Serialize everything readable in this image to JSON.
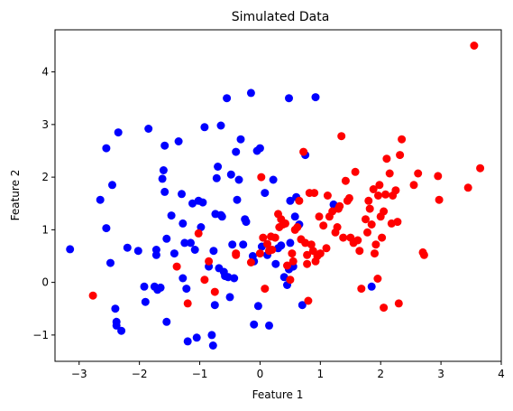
{
  "chart_data": {
    "type": "scatter",
    "title": "Simulated Data",
    "xlabel": "Feature 1",
    "ylabel": "Feature 2",
    "xlim": [
      -3.4,
      4.0
    ],
    "ylim": [
      -1.5,
      4.8
    ],
    "xticks": [
      -3,
      -2,
      -1,
      0,
      1,
      2,
      3,
      4
    ],
    "yticks": [
      -1,
      0,
      1,
      2,
      3,
      4
    ],
    "xtick_labels": [
      "−3",
      "−2",
      "−1",
      "0",
      "1",
      "2",
      "3",
      "4"
    ],
    "ytick_labels": [
      "−1",
      "0",
      "1",
      "2",
      "3",
      "4"
    ],
    "grid": false,
    "series": [
      {
        "color": "#0000ff",
        "points": [
          [
            -3.15,
            0.63
          ],
          [
            -2.65,
            1.57
          ],
          [
            -2.55,
            2.55
          ],
          [
            -2.55,
            1.03
          ],
          [
            -2.48,
            0.37
          ],
          [
            -2.45,
            1.85
          ],
          [
            -2.4,
            -0.5
          ],
          [
            -2.38,
            -0.75
          ],
          [
            -2.38,
            -0.82
          ],
          [
            -2.35,
            2.85
          ],
          [
            -2.3,
            -0.92
          ],
          [
            -2.2,
            0.66
          ],
          [
            -2.02,
            0.6
          ],
          [
            -1.92,
            -0.08
          ],
          [
            -1.9,
            -0.37
          ],
          [
            -1.85,
            2.92
          ],
          [
            -1.75,
            -0.08
          ],
          [
            -1.72,
            0.62
          ],
          [
            -1.72,
            0.52
          ],
          [
            -1.7,
            -0.14
          ],
          [
            -1.65,
            -0.1
          ],
          [
            -1.62,
            1.97
          ],
          [
            -1.6,
            2.13
          ],
          [
            -1.58,
            1.72
          ],
          [
            -1.58,
            2.6
          ],
          [
            -1.55,
            -0.75
          ],
          [
            -1.55,
            0.83
          ],
          [
            -1.47,
            1.27
          ],
          [
            -1.42,
            0.55
          ],
          [
            -1.35,
            2.68
          ],
          [
            -1.3,
            1.68
          ],
          [
            -1.28,
            1.12
          ],
          [
            -1.28,
            0.08
          ],
          [
            -1.25,
            0.75
          ],
          [
            -1.22,
            -0.12
          ],
          [
            -1.2,
            -1.12
          ],
          [
            -1.15,
            0.75
          ],
          [
            -1.12,
            1.5
          ],
          [
            -1.08,
            0.62
          ],
          [
            -1.05,
            -1.05
          ],
          [
            -1.02,
            1.55
          ],
          [
            -0.98,
            1.05
          ],
          [
            -0.95,
            1.52
          ],
          [
            -0.92,
            2.95
          ],
          [
            -0.85,
            0.3
          ],
          [
            -0.8,
            -1.0
          ],
          [
            -0.78,
            -1.2
          ],
          [
            -0.77,
            0.6
          ],
          [
            -0.75,
            -0.43
          ],
          [
            -0.74,
            1.3
          ],
          [
            -0.72,
            1.98
          ],
          [
            -0.7,
            2.2
          ],
          [
            -0.68,
            0.27
          ],
          [
            -0.65,
            1.28
          ],
          [
            -0.65,
            2.98
          ],
          [
            -0.63,
            1.25
          ],
          [
            -0.6,
            0.2
          ],
          [
            -0.58,
            0.12
          ],
          [
            -0.55,
            3.5
          ],
          [
            -0.53,
            0.1
          ],
          [
            -0.5,
            -0.28
          ],
          [
            -0.48,
            2.05
          ],
          [
            -0.46,
            0.72
          ],
          [
            -0.43,
            0.08
          ],
          [
            -0.4,
            2.48
          ],
          [
            -0.38,
            1.57
          ],
          [
            -0.35,
            1.95
          ],
          [
            -0.32,
            2.72
          ],
          [
            -0.28,
            0.72
          ],
          [
            -0.25,
            1.2
          ],
          [
            -0.23,
            1.15
          ],
          [
            -0.15,
            3.6
          ],
          [
            -0.12,
            0.5
          ],
          [
            -0.1,
            -0.8
          ],
          [
            -0.1,
            0.4
          ],
          [
            -0.05,
            2.5
          ],
          [
            -0.03,
            -0.45
          ],
          [
            0.0,
            2.55
          ],
          [
            0.03,
            0.68
          ],
          [
            0.08,
            1.7
          ],
          [
            0.12,
            0.52
          ],
          [
            0.15,
            -0.82
          ],
          [
            0.22,
            1.95
          ],
          [
            0.26,
            0.35
          ],
          [
            0.3,
            0.65
          ],
          [
            0.35,
            0.7
          ],
          [
            0.4,
            0.1
          ],
          [
            0.45,
            -0.05
          ],
          [
            0.48,
            0.25
          ],
          [
            0.48,
            3.5
          ],
          [
            0.5,
            0.75
          ],
          [
            0.5,
            1.55
          ],
          [
            0.55,
            0.3
          ],
          [
            0.58,
            1.25
          ],
          [
            0.6,
            1.62
          ],
          [
            0.65,
            1.1
          ],
          [
            0.7,
            -0.43
          ],
          [
            0.75,
            2.42
          ],
          [
            0.92,
            3.52
          ],
          [
            1.22,
            1.48
          ],
          [
            1.85,
            -0.08
          ]
        ]
      },
      {
        "color": "#ff0000",
        "points": [
          [
            -2.77,
            -0.25
          ],
          [
            -1.38,
            0.3
          ],
          [
            -1.2,
            -0.4
          ],
          [
            -1.02,
            0.93
          ],
          [
            -0.92,
            0.05
          ],
          [
            -0.85,
            0.4
          ],
          [
            -0.75,
            -0.18
          ],
          [
            -0.4,
            0.55
          ],
          [
            -0.15,
            0.38
          ],
          [
            0.0,
            0.55
          ],
          [
            0.02,
            2.0
          ],
          [
            0.05,
            0.85
          ],
          [
            0.08,
            -0.12
          ],
          [
            0.12,
            0.73
          ],
          [
            0.15,
            0.6
          ],
          [
            0.18,
            0.87
          ],
          [
            0.2,
            0.62
          ],
          [
            0.25,
            0.85
          ],
          [
            0.3,
            1.3
          ],
          [
            0.32,
            1.05
          ],
          [
            0.35,
            1.2
          ],
          [
            0.38,
            1.1
          ],
          [
            0.42,
            1.12
          ],
          [
            0.45,
            0.32
          ],
          [
            0.5,
            0.05
          ],
          [
            0.53,
            0.55
          ],
          [
            0.55,
            0.4
          ],
          [
            0.58,
            1.0
          ],
          [
            0.62,
            1.05
          ],
          [
            0.65,
            1.55
          ],
          [
            0.68,
            0.82
          ],
          [
            0.72,
            2.48
          ],
          [
            0.75,
            0.75
          ],
          [
            0.78,
            0.52
          ],
          [
            0.78,
            0.35
          ],
          [
            0.8,
            -0.35
          ],
          [
            0.82,
            1.7
          ],
          [
            0.85,
            0.72
          ],
          [
            0.88,
            0.6
          ],
          [
            0.9,
            1.7
          ],
          [
            0.92,
            0.4
          ],
          [
            0.95,
            0.5
          ],
          [
            0.98,
            1.25
          ],
          [
            1.0,
            0.55
          ],
          [
            1.05,
            1.08
          ],
          [
            1.1,
            0.65
          ],
          [
            1.12,
            1.65
          ],
          [
            1.15,
            1.25
          ],
          [
            1.2,
            1.35
          ],
          [
            1.25,
            0.95
          ],
          [
            1.28,
            1.05
          ],
          [
            1.3,
            1.4
          ],
          [
            1.32,
            1.45
          ],
          [
            1.35,
            2.78
          ],
          [
            1.38,
            0.85
          ],
          [
            1.42,
            1.93
          ],
          [
            1.45,
            1.55
          ],
          [
            1.48,
            1.6
          ],
          [
            1.5,
            0.85
          ],
          [
            1.55,
            0.75
          ],
          [
            1.58,
            2.1
          ],
          [
            1.62,
            0.8
          ],
          [
            1.65,
            0.6
          ],
          [
            1.68,
            -0.12
          ],
          [
            1.75,
            1.2
          ],
          [
            1.78,
            0.95
          ],
          [
            1.8,
            1.55
          ],
          [
            1.82,
            1.4
          ],
          [
            1.85,
            1.1
          ],
          [
            1.88,
            1.77
          ],
          [
            1.9,
            0.55
          ],
          [
            1.92,
            0.72
          ],
          [
            1.95,
            0.07
          ],
          [
            1.96,
            1.65
          ],
          [
            1.98,
            1.85
          ],
          [
            2.0,
            1.25
          ],
          [
            2.02,
            0.85
          ],
          [
            2.05,
            1.35
          ],
          [
            2.05,
            -0.48
          ],
          [
            2.08,
            1.67
          ],
          [
            2.1,
            2.35
          ],
          [
            2.15,
            2.07
          ],
          [
            2.18,
            1.12
          ],
          [
            2.2,
            1.65
          ],
          [
            2.25,
            1.75
          ],
          [
            2.28,
            1.15
          ],
          [
            2.3,
            -0.4
          ],
          [
            2.32,
            2.42
          ],
          [
            2.35,
            2.72
          ],
          [
            2.55,
            1.85
          ],
          [
            2.62,
            2.07
          ],
          [
            2.7,
            0.57
          ],
          [
            2.72,
            0.52
          ],
          [
            2.95,
            2.02
          ],
          [
            2.97,
            1.57
          ],
          [
            3.45,
            1.8
          ],
          [
            3.55,
            4.5
          ],
          [
            3.65,
            2.17
          ],
          [
            -0.4,
            0.52
          ]
        ]
      }
    ]
  }
}
